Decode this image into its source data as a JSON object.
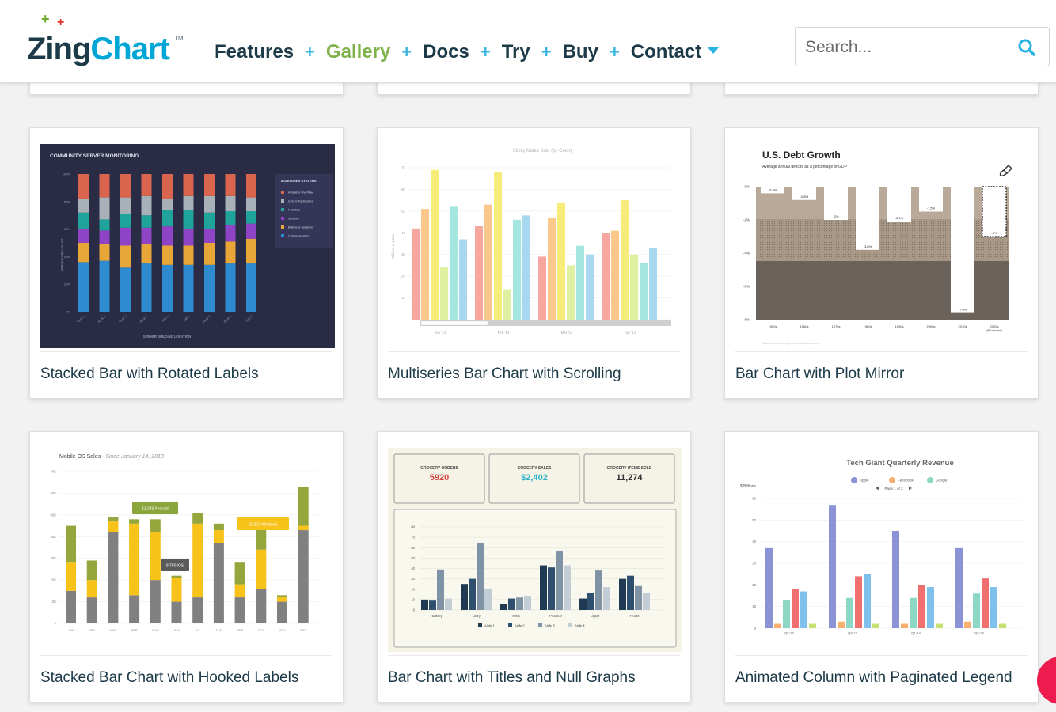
{
  "brand": {
    "zing": "Zing",
    "chart": "Chart",
    "tm": "TM"
  },
  "nav": {
    "items": [
      {
        "label": "Features",
        "active": false
      },
      {
        "label": "Gallery",
        "active": true
      },
      {
        "label": "Docs",
        "active": false
      },
      {
        "label": "Try",
        "active": false
      },
      {
        "label": "Buy",
        "active": false
      },
      {
        "label": "Contact",
        "active": false
      }
    ],
    "separator": "+"
  },
  "search": {
    "placeholder": "Search..."
  },
  "cards": [
    {
      "title": "Stacked Bar with Rotated Labels"
    },
    {
      "title": "Multiseries Bar Chart with Scrolling"
    },
    {
      "title": "Bar Chart with Plot Mirror"
    },
    {
      "title": "Stacked Bar Chart with Hooked Labels"
    },
    {
      "title": "Bar Chart with Titles and Null Graphs"
    },
    {
      "title": "Animated Column with Paginated Legend"
    }
  ],
  "thumbs": {
    "server": {
      "title": "COMMUNITY SERVER MONITORING",
      "legend_title": "MONITORED SYSTEMS",
      "legend": [
        "Available Overflow",
        "Core Infrastructure",
        "Facilities",
        "Security",
        "Business Systems",
        "Communication"
      ],
      "colors": [
        "#d9654e",
        "#a8b0b8",
        "#20a39a",
        "#8e44c4",
        "#e8a638",
        "#2e8bd0"
      ],
      "ylabel": "SERVER CPU USAGE",
      "xlabel": "SERVER BUILDING LOCATION",
      "yticks": [
        "100%",
        "80%",
        "60%",
        "40%",
        "20%",
        "0%"
      ],
      "categories": [
        "Rack 1",
        "Rack 2",
        "Rack 3",
        "Rack 4",
        "Exit 1",
        "Exit 2",
        "Rack 5",
        "Rack 6",
        "Exit 3"
      ]
    },
    "sticky": {
      "title": "Sticky Notes Sold (by Color)",
      "ylabel": "Millions of Units",
      "yticks": [
        "70",
        "60",
        "50",
        "40",
        "30",
        "20",
        "10"
      ],
      "months": [
        "Jan '14",
        "Feb '14",
        "Mar '14",
        "Apr '14"
      ],
      "colors": [
        "#f7a6a0",
        "#fbc78a",
        "#f6ec7a",
        "#dff0a0",
        "#a6e6e0",
        "#a8d8f0"
      ],
      "groups": [
        [
          42,
          51,
          69,
          24,
          52,
          37
        ],
        [
          43,
          53,
          68,
          14,
          46,
          48
        ],
        [
          29,
          47,
          54,
          25,
          34,
          30
        ],
        [
          40,
          41,
          55,
          30,
          26,
          33
        ]
      ]
    },
    "debt": {
      "title": "U.S. Debt Growth",
      "subtitle": "Average annual deficits as a percentage of GDP",
      "yticks": [
        "0%",
        "-2%",
        "-4%",
        "-6%",
        "-8%"
      ],
      "categories": [
        "1950s",
        "1960s",
        "1970s",
        "1980s",
        "1990s",
        "2000s",
        "2010s",
        "2020s (Projected)"
      ],
      "values": [
        -0.4,
        -0.8,
        -2,
        -3.8,
        -2.1,
        -1.5,
        -7.6,
        -3
      ],
      "labels": [
        "-0.4%",
        "-0.8%",
        "-2%",
        "-3.8%",
        "-2.1%",
        "-1.5%",
        "-7.6%",
        "-3%"
      ],
      "source": "Sources: www.cbo.gov / www.whitehouse.gov"
    },
    "mobile": {
      "title": "Mobile OS Sales - ",
      "title_italic": "Since January 14, 2013",
      "yticks": [
        "70K",
        "60K",
        "50K",
        "40K",
        "30K",
        "20K",
        "10K",
        "0"
      ],
      "months": [
        "JAN",
        "FEB",
        "MAR",
        "APR",
        "MAY",
        "JUN",
        "JUL",
        "AUG",
        "SEP",
        "OCT",
        "NOV",
        "DEC"
      ],
      "gray": [
        15,
        12,
        42,
        13,
        20,
        10,
        12,
        37,
        12,
        16,
        10,
        43
      ],
      "yellow": [
        13,
        8,
        5,
        33,
        22,
        11,
        34,
        6,
        6,
        18,
        2,
        2
      ],
      "green": [
        17,
        9,
        2,
        2,
        6,
        1,
        5,
        3,
        10,
        10,
        1,
        18
      ],
      "labels": [
        "11,245 Android",
        "9,750 iOS",
        "15,273 Windows"
      ]
    },
    "grocery": {
      "stats": [
        {
          "label": "GROCERY ORDERS",
          "value": "5920",
          "color": "#d94040"
        },
        {
          "label": "GROCERY SALES",
          "value": "$2,402",
          "color": "#28b0c8"
        },
        {
          "label": "GROCERY ITEMS SOLD",
          "value": "11,274",
          "color": "#333333"
        }
      ],
      "yticks": [
        "80",
        "70",
        "60",
        "50",
        "40",
        "30",
        "20",
        "10",
        "0"
      ],
      "categories": [
        "Bakery",
        "Dairy",
        "Meat",
        "Produce",
        "Liquor",
        "Frozen"
      ],
      "series": [
        "Aisle 1",
        "Aisle 2",
        "Aisle 3",
        "Aisle 4"
      ],
      "colors": [
        "#1f3a52",
        "#2f4f6f",
        "#7f93a4",
        "#c2cdd6"
      ],
      "values": [
        [
          10,
          9,
          39,
          11
        ],
        [
          25,
          30,
          64,
          20
        ],
        [
          6,
          11,
          12,
          13
        ],
        [
          43,
          41,
          57,
          43
        ],
        [
          11,
          16,
          38,
          22
        ],
        [
          30,
          33,
          23,
          16
        ]
      ]
    },
    "tech": {
      "title": "Tech Giant Quarterly Revenue",
      "legend": [
        "Apple",
        "Facebook",
        "Google"
      ],
      "pager": "Page 1 of 2",
      "ylabel": "$ Billions",
      "yticks": [
        "60",
        "50",
        "40",
        "30",
        "20",
        "10",
        "0"
      ],
      "quarters": [
        "Q3-13",
        "Q4-13",
        "Q1-14",
        "Q2-14"
      ],
      "colors": [
        "#8b93d4",
        "#f8b070",
        "#8cd8c4",
        "#f07070",
        "#80c0ec",
        "#c8e070"
      ],
      "groups": [
        [
          37,
          2,
          13,
          18,
          17,
          2
        ],
        [
          57,
          3,
          14,
          24,
          25,
          2
        ],
        [
          45,
          2,
          14,
          20,
          19,
          2
        ],
        [
          37,
          3,
          16,
          23,
          19,
          2
        ]
      ]
    }
  }
}
